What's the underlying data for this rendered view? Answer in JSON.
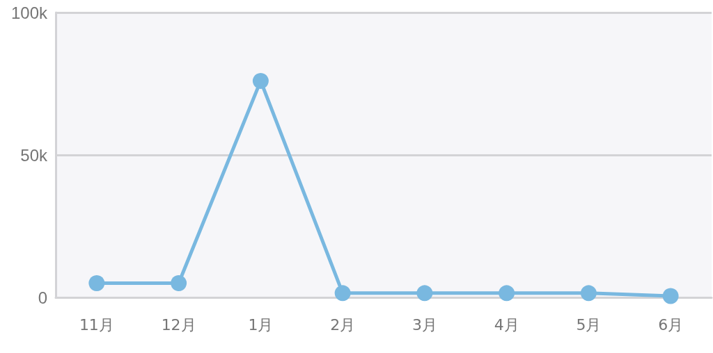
{
  "chart_data": {
    "type": "line",
    "categories": [
      "11月",
      "12月",
      "1月",
      "2月",
      "3月",
      "4月",
      "5月",
      "6月"
    ],
    "series": [
      {
        "color": "#79b8e0",
        "values": [
          5000,
          5000,
          76000,
          1500,
          1500,
          1500,
          1500,
          500
        ]
      }
    ],
    "ylim": [
      0,
      100000
    ],
    "yticks": [
      {
        "value": 0,
        "label": "0"
      },
      {
        "value": 50000,
        "label": "50k"
      },
      {
        "value": 100000,
        "label": "100k"
      }
    ],
    "grid": "y",
    "marker": "circle",
    "line_style": "solid"
  }
}
